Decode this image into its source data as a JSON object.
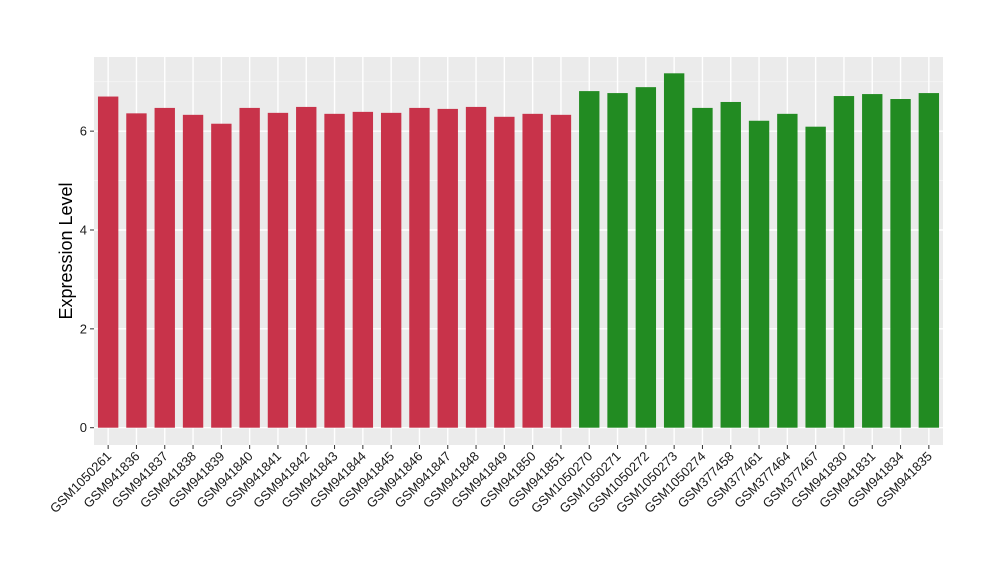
{
  "chart_data": {
    "type": "bar",
    "title": "",
    "xlabel": "",
    "ylabel": "Expression Level",
    "ylim": [
      -0.35,
      7.5
    ],
    "yticks": [
      0,
      2,
      4,
      6
    ],
    "grid": true,
    "panel_background": "#ebebeb",
    "categories": [
      "GSM1050261",
      "GSM941836",
      "GSM941837",
      "GSM941838",
      "GSM941839",
      "GSM941840",
      "GSM941841",
      "GSM941842",
      "GSM941843",
      "GSM941844",
      "GSM941845",
      "GSM941846",
      "GSM941847",
      "GSM941848",
      "GSM941849",
      "GSM941850",
      "GSM941851",
      "GSM1050270",
      "GSM1050271",
      "GSM1050272",
      "GSM1050273",
      "GSM1050274",
      "GSM377458",
      "GSM377461",
      "GSM377464",
      "GSM377467",
      "GSM941830",
      "GSM941831",
      "GSM941834",
      "GSM941835"
    ],
    "values": [
      6.7,
      6.36,
      6.47,
      6.33,
      6.15,
      6.47,
      6.37,
      6.49,
      6.35,
      6.39,
      6.37,
      6.47,
      6.45,
      6.49,
      6.29,
      6.35,
      6.33,
      6.81,
      6.77,
      6.89,
      7.17,
      6.47,
      6.59,
      6.21,
      6.35,
      6.09,
      6.71,
      6.75,
      6.65,
      6.77
    ],
    "colors": [
      "#c8334a",
      "#c8334a",
      "#c8334a",
      "#c8334a",
      "#c8334a",
      "#c8334a",
      "#c8334a",
      "#c8334a",
      "#c8334a",
      "#c8334a",
      "#c8334a",
      "#c8334a",
      "#c8334a",
      "#c8334a",
      "#c8334a",
      "#c8334a",
      "#c8334a",
      "#228b22",
      "#228b22",
      "#228b22",
      "#228b22",
      "#228b22",
      "#228b22",
      "#228b22",
      "#228b22",
      "#228b22",
      "#228b22",
      "#228b22",
      "#228b22",
      "#228b22"
    ]
  }
}
